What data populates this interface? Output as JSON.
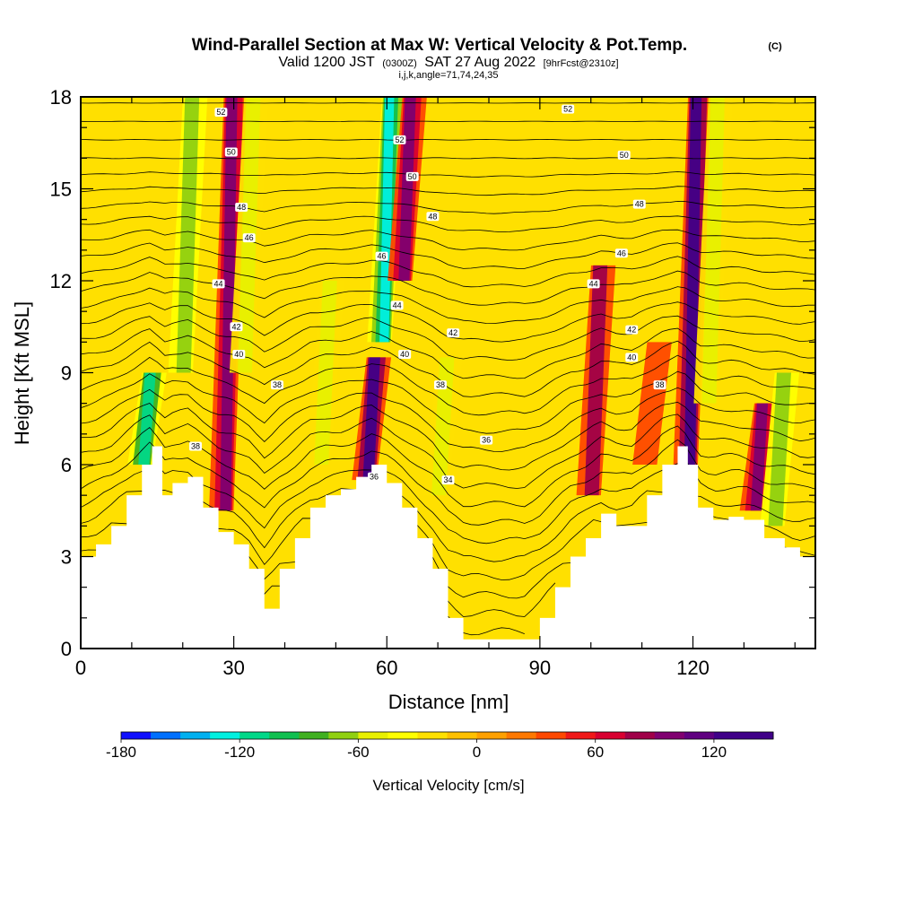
{
  "header": {
    "title": "Wind-Parallel Section at Max W: Vertical Velocity & Pot.Temp.",
    "copyright": "(C)",
    "valid_prefix": "Valid 1200 JST",
    "valid_utc": "(0300Z)",
    "valid_date": "SAT 27 Aug 2022",
    "forecast": "[9hrFcst@2310z]",
    "indices": "i,j,k,angle=71,74,24,35"
  },
  "chart_data": {
    "type": "heatmap",
    "xlabel": "Distance [nm]",
    "ylabel": "Height [Kft MSL]",
    "xlim": [
      0,
      144
    ],
    "ylim": [
      0,
      18
    ],
    "x_ticks": [
      "0",
      "30",
      "60",
      "90",
      "120"
    ],
    "x_tick_values": [
      0,
      30,
      60,
      90,
      120
    ],
    "y_ticks": [
      "0",
      "3",
      "6",
      "9",
      "12",
      "15",
      "18"
    ],
    "y_tick_values": [
      0,
      3,
      6,
      9,
      12,
      15,
      18
    ],
    "terrain": [
      [
        0,
        3.0
      ],
      [
        3,
        3.4
      ],
      [
        6,
        4.0
      ],
      [
        9,
        5.0
      ],
      [
        12,
        6.0
      ],
      [
        14,
        6.6
      ],
      [
        16,
        5.0
      ],
      [
        18,
        5.4
      ],
      [
        21,
        5.6
      ],
      [
        24,
        4.6
      ],
      [
        27,
        3.8
      ],
      [
        30,
        3.4
      ],
      [
        33,
        2.6
      ],
      [
        36,
        1.3
      ],
      [
        39,
        2.6
      ],
      [
        42,
        3.6
      ],
      [
        45,
        4.6
      ],
      [
        48,
        5.0
      ],
      [
        51,
        5.2
      ],
      [
        54,
        5.6
      ],
      [
        57,
        6.0
      ],
      [
        60,
        5.4
      ],
      [
        63,
        4.6
      ],
      [
        66,
        3.6
      ],
      [
        69,
        2.6
      ],
      [
        72,
        1.0
      ],
      [
        75,
        0.3
      ],
      [
        81,
        0.3
      ],
      [
        87,
        0.3
      ],
      [
        90,
        1.0
      ],
      [
        93,
        2.0
      ],
      [
        96,
        3.0
      ],
      [
        99,
        3.6
      ],
      [
        102,
        4.4
      ],
      [
        105,
        4.0
      ],
      [
        108,
        4.0
      ],
      [
        111,
        5.0
      ],
      [
        114,
        6.0
      ],
      [
        117,
        6.6
      ],
      [
        119,
        6.0
      ],
      [
        121,
        4.6
      ],
      [
        124,
        4.2
      ],
      [
        127,
        4.3
      ],
      [
        130,
        4.2
      ],
      [
        134,
        3.6
      ],
      [
        138,
        3.3
      ],
      [
        141,
        3.0
      ],
      [
        144,
        3.0
      ]
    ],
    "vertical_velocity_cores": [
      {
        "x": 13,
        "ytop": 9.0,
        "ybot": 6.0,
        "w": -120
      },
      {
        "x": 21,
        "ytop": 18.0,
        "ybot": 9.0,
        "w": -70
      },
      {
        "x": 29,
        "ytop": 18.0,
        "ybot": 4.5,
        "w": 100
      },
      {
        "x": 33,
        "ytop": 18.0,
        "ybot": 9.0,
        "w": -60
      },
      {
        "x": 48,
        "ytop": 12.0,
        "ybot": 6.0,
        "w": -60
      },
      {
        "x": 57,
        "ytop": 9.5,
        "ybot": 5.5,
        "w": 120
      },
      {
        "x": 60,
        "ytop": 18.0,
        "ybot": 10.0,
        "w": -130
      },
      {
        "x": 64,
        "ytop": 18.0,
        "ybot": 12.0,
        "w": 90
      },
      {
        "x": 71,
        "ytop": 9.5,
        "ybot": 5.0,
        "w": -60
      },
      {
        "x": 101,
        "ytop": 12.5,
        "ybot": 5.0,
        "w": 80
      },
      {
        "x": 112,
        "ytop": 10.0,
        "ybot": 6.0,
        "w": 40
      },
      {
        "x": 120,
        "ytop": 18.0,
        "ybot": 6.0,
        "w": 120
      },
      {
        "x": 124,
        "ytop": 18.0,
        "ybot": 8.0,
        "w": -60
      },
      {
        "x": 133,
        "ytop": 8.0,
        "ybot": 4.5,
        "w": 90
      },
      {
        "x": 137,
        "ytop": 9.0,
        "ybot": 4.0,
        "w": -70
      }
    ],
    "theta_labels": [
      {
        "text": "52",
        "x": 27.5,
        "y": 17.5
      },
      {
        "text": "50",
        "x": 29.5,
        "y": 16.2
      },
      {
        "text": "48",
        "x": 31.5,
        "y": 14.4
      },
      {
        "text": "46",
        "x": 33,
        "y": 13.4
      },
      {
        "text": "44",
        "x": 27,
        "y": 11.9
      },
      {
        "text": "42",
        "x": 30.5,
        "y": 10.5
      },
      {
        "text": "40",
        "x": 31,
        "y": 9.6
      },
      {
        "text": "38",
        "x": 38.5,
        "y": 8.6
      },
      {
        "text": "38",
        "x": 22.5,
        "y": 6.6
      },
      {
        "text": "52",
        "x": 62.5,
        "y": 16.6
      },
      {
        "text": "50",
        "x": 65,
        "y": 15.4
      },
      {
        "text": "48",
        "x": 69,
        "y": 14.1
      },
      {
        "text": "46",
        "x": 59,
        "y": 12.8
      },
      {
        "text": "44",
        "x": 62,
        "y": 11.2
      },
      {
        "text": "42",
        "x": 73,
        "y": 10.3
      },
      {
        "text": "40",
        "x": 63.5,
        "y": 9.6
      },
      {
        "text": "38",
        "x": 70.5,
        "y": 8.6
      },
      {
        "text": "36",
        "x": 79.5,
        "y": 6.8
      },
      {
        "text": "34",
        "x": 72,
        "y": 5.5
      },
      {
        "text": "36",
        "x": 57.5,
        "y": 5.6
      },
      {
        "text": "52",
        "x": 95.5,
        "y": 17.6
      },
      {
        "text": "50",
        "x": 106.5,
        "y": 16.1
      },
      {
        "text": "48",
        "x": 109.5,
        "y": 14.5
      },
      {
        "text": "46",
        "x": 106,
        "y": 12.9
      },
      {
        "text": "44",
        "x": 100.5,
        "y": 11.9
      },
      {
        "text": "42",
        "x": 108,
        "y": 10.4
      },
      {
        "text": "40",
        "x": 108,
        "y": 9.5
      },
      {
        "text": "38",
        "x": 113.5,
        "y": 8.6
      }
    ],
    "colorbar": {
      "title": "Vertical Velocity [cm/s]",
      "tick_labels": [
        "-180",
        "-120",
        "-60",
        "0",
        "60",
        "120"
      ],
      "tick_values": [
        -180,
        -120,
        -60,
        0,
        60,
        120
      ],
      "min": -180,
      "max": 150,
      "step": 15,
      "colors": [
        "#1010ff",
        "#0070ff",
        "#00b0f0",
        "#00f0e0",
        "#00d888",
        "#10c050",
        "#40b020",
        "#90d010",
        "#e8f000",
        "#ffff00",
        "#ffe000",
        "#ffc000",
        "#ffa000",
        "#ff7800",
        "#ff4800",
        "#f01818",
        "#d80030",
        "#a00048",
        "#800070",
        "#600080",
        "#400088",
        "#400088"
      ]
    }
  }
}
